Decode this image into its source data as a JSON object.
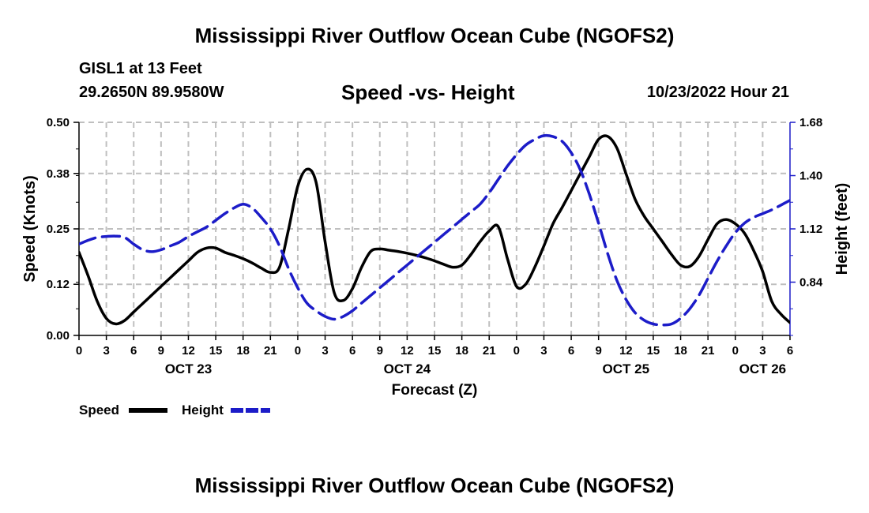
{
  "title": "Mississippi River Outflow Ocean Cube (NGOFS2)",
  "title_repeat": "Mississippi River Outflow Ocean Cube (NGOFS2)",
  "station": "GISL1 at 13 Feet",
  "coords": "29.2650N  89.9580W",
  "subtitle": "Speed -vs- Height",
  "datetime": "10/23/2022 Hour 21",
  "colors": {
    "speed": "#000000",
    "height": "#1c1cc8",
    "grid": "#bfbfbf"
  },
  "chart_data": {
    "type": "line",
    "xlabel": "Forecast (Z)",
    "ylabel_left": "Speed (Knots)",
    "ylabel_right": "Height (feet)",
    "x_range_hours": [
      0,
      78
    ],
    "x_tick_step_hours": 3,
    "x_tick_labels": [
      "0",
      "3",
      "6",
      "9",
      "12",
      "15",
      "18",
      "21",
      "0",
      "3",
      "6",
      "9",
      "12",
      "15",
      "18",
      "21",
      "0",
      "3",
      "6",
      "9",
      "12",
      "15",
      "18",
      "21",
      "0",
      "3",
      "6"
    ],
    "day_labels": [
      {
        "label": "OCT 23",
        "hour": 12
      },
      {
        "label": "OCT 24",
        "hour": 36
      },
      {
        "label": "OCT 25",
        "hour": 60
      },
      {
        "label": "OCT 26",
        "hour": 75
      }
    ],
    "ylim_left": [
      0.0,
      0.5
    ],
    "yticks_left": [
      "0.00",
      "0.12",
      "0.25",
      "0.38",
      "0.50"
    ],
    "ylim_right": [
      0.56,
      1.68
    ],
    "yticks_right": [
      "0.84",
      "1.12",
      "1.40",
      "1.68"
    ],
    "grid": true,
    "legend": [
      "Speed",
      "Height"
    ],
    "series": [
      {
        "name": "Speed",
        "axis": "left",
        "x": [
          0,
          1,
          2,
          3,
          4,
          5,
          6,
          7,
          8,
          9,
          10,
          11,
          12,
          13,
          14,
          15,
          16,
          17,
          18,
          19,
          20,
          21,
          22,
          23,
          24,
          25,
          26,
          27,
          28,
          29,
          30,
          31,
          32,
          33,
          34,
          35,
          36,
          37,
          38,
          39,
          40,
          41,
          42,
          43,
          44,
          45,
          46,
          47,
          48,
          49,
          50,
          51,
          52,
          53,
          54,
          55,
          56,
          57,
          58,
          59,
          60,
          61,
          62,
          63,
          64,
          65,
          66,
          67,
          68,
          69,
          70,
          71,
          72,
          73,
          74,
          75,
          76,
          77,
          78
        ],
        "values": [
          0.195,
          0.14,
          0.08,
          0.04,
          0.027,
          0.035,
          0.055,
          0.075,
          0.095,
          0.115,
          0.135,
          0.155,
          0.175,
          0.195,
          0.205,
          0.205,
          0.195,
          0.188,
          0.18,
          0.17,
          0.158,
          0.148,
          0.16,
          0.25,
          0.35,
          0.39,
          0.36,
          0.22,
          0.1,
          0.082,
          0.11,
          0.16,
          0.197,
          0.203,
          0.2,
          0.197,
          0.193,
          0.188,
          0.182,
          0.175,
          0.167,
          0.16,
          0.165,
          0.19,
          0.22,
          0.245,
          0.255,
          0.18,
          0.115,
          0.12,
          0.16,
          0.21,
          0.262,
          0.3,
          0.34,
          0.38,
          0.42,
          0.46,
          0.467,
          0.44,
          0.38,
          0.32,
          0.28,
          0.25,
          0.22,
          0.19,
          0.165,
          0.162,
          0.185,
          0.225,
          0.262,
          0.272,
          0.262,
          0.24,
          0.2,
          0.15,
          0.08,
          0.05,
          0.03
        ]
      },
      {
        "name": "Height",
        "axis": "right",
        "x": [
          0,
          1,
          2,
          3,
          4,
          5,
          6,
          7,
          8,
          9,
          10,
          11,
          12,
          13,
          14,
          15,
          16,
          17,
          18,
          19,
          20,
          21,
          22,
          23,
          24,
          25,
          26,
          27,
          28,
          29,
          30,
          31,
          32,
          33,
          34,
          35,
          36,
          37,
          38,
          39,
          40,
          41,
          42,
          43,
          44,
          45,
          46,
          47,
          48,
          49,
          50,
          51,
          52,
          53,
          54,
          55,
          56,
          57,
          58,
          59,
          60,
          61,
          62,
          63,
          64,
          65,
          66,
          67,
          68,
          69,
          70,
          71,
          72,
          73,
          74,
          75,
          76,
          77,
          78
        ],
        "values": [
          1.04,
          1.06,
          1.075,
          1.08,
          1.082,
          1.075,
          1.04,
          1.01,
          1.0,
          1.01,
          1.03,
          1.05,
          1.08,
          1.105,
          1.13,
          1.165,
          1.2,
          1.23,
          1.25,
          1.23,
          1.18,
          1.12,
          1.03,
          0.91,
          0.81,
          0.73,
          0.69,
          0.66,
          0.645,
          0.66,
          0.69,
          0.73,
          0.77,
          0.81,
          0.85,
          0.89,
          0.93,
          0.97,
          1.01,
          1.05,
          1.09,
          1.13,
          1.17,
          1.21,
          1.25,
          1.31,
          1.38,
          1.45,
          1.51,
          1.56,
          1.59,
          1.61,
          1.605,
          1.58,
          1.52,
          1.43,
          1.3,
          1.15,
          0.99,
          0.85,
          0.75,
          0.68,
          0.64,
          0.62,
          0.615,
          0.62,
          0.65,
          0.7,
          0.77,
          0.86,
          0.95,
          1.03,
          1.1,
          1.15,
          1.18,
          1.2,
          1.22,
          1.245,
          1.27
        ]
      }
    ]
  }
}
